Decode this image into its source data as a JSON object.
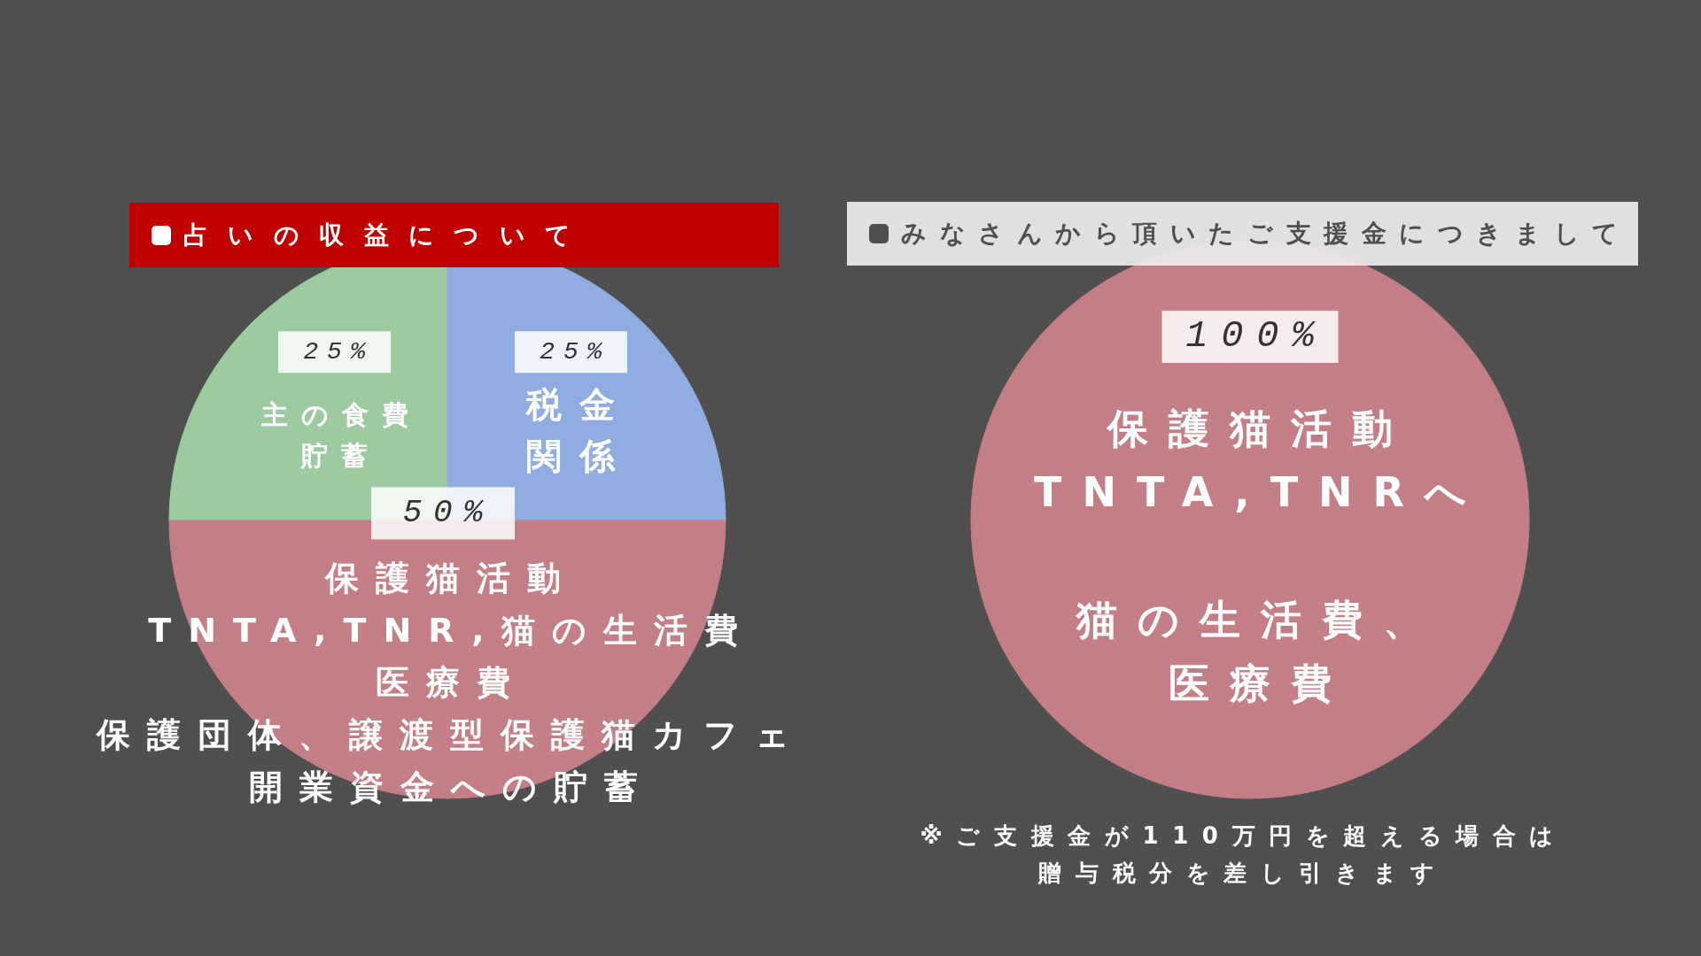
{
  "chart_data": [
    {
      "type": "pie",
      "title": "占いの収益について",
      "categories": [
        "主の食費貯蓄",
        "税金関係",
        "保護猫活動TNTA,TNR,猫の生活費医療費保護団体、譲渡型保護猫カフェ開業資金への貯蓄"
      ],
      "values": [
        25,
        25,
        50
      ],
      "colors": [
        "#9ccb9f",
        "#8fade0",
        "#c47e86"
      ],
      "value_labels": [
        "25%",
        "25%",
        "50%"
      ]
    },
    {
      "type": "pie",
      "title": "みなさんから頂いたご支援金につきまして",
      "categories": [
        "保護猫活動TNTA,TNRへ猫の生活費、医療費"
      ],
      "values": [
        100
      ],
      "colors": [
        "#c47e86"
      ],
      "value_labels": [
        "100%"
      ],
      "annotations": [
        "※ご支援金が110万円を超える場合は贈与税分を差し引きます"
      ]
    }
  ]
}
